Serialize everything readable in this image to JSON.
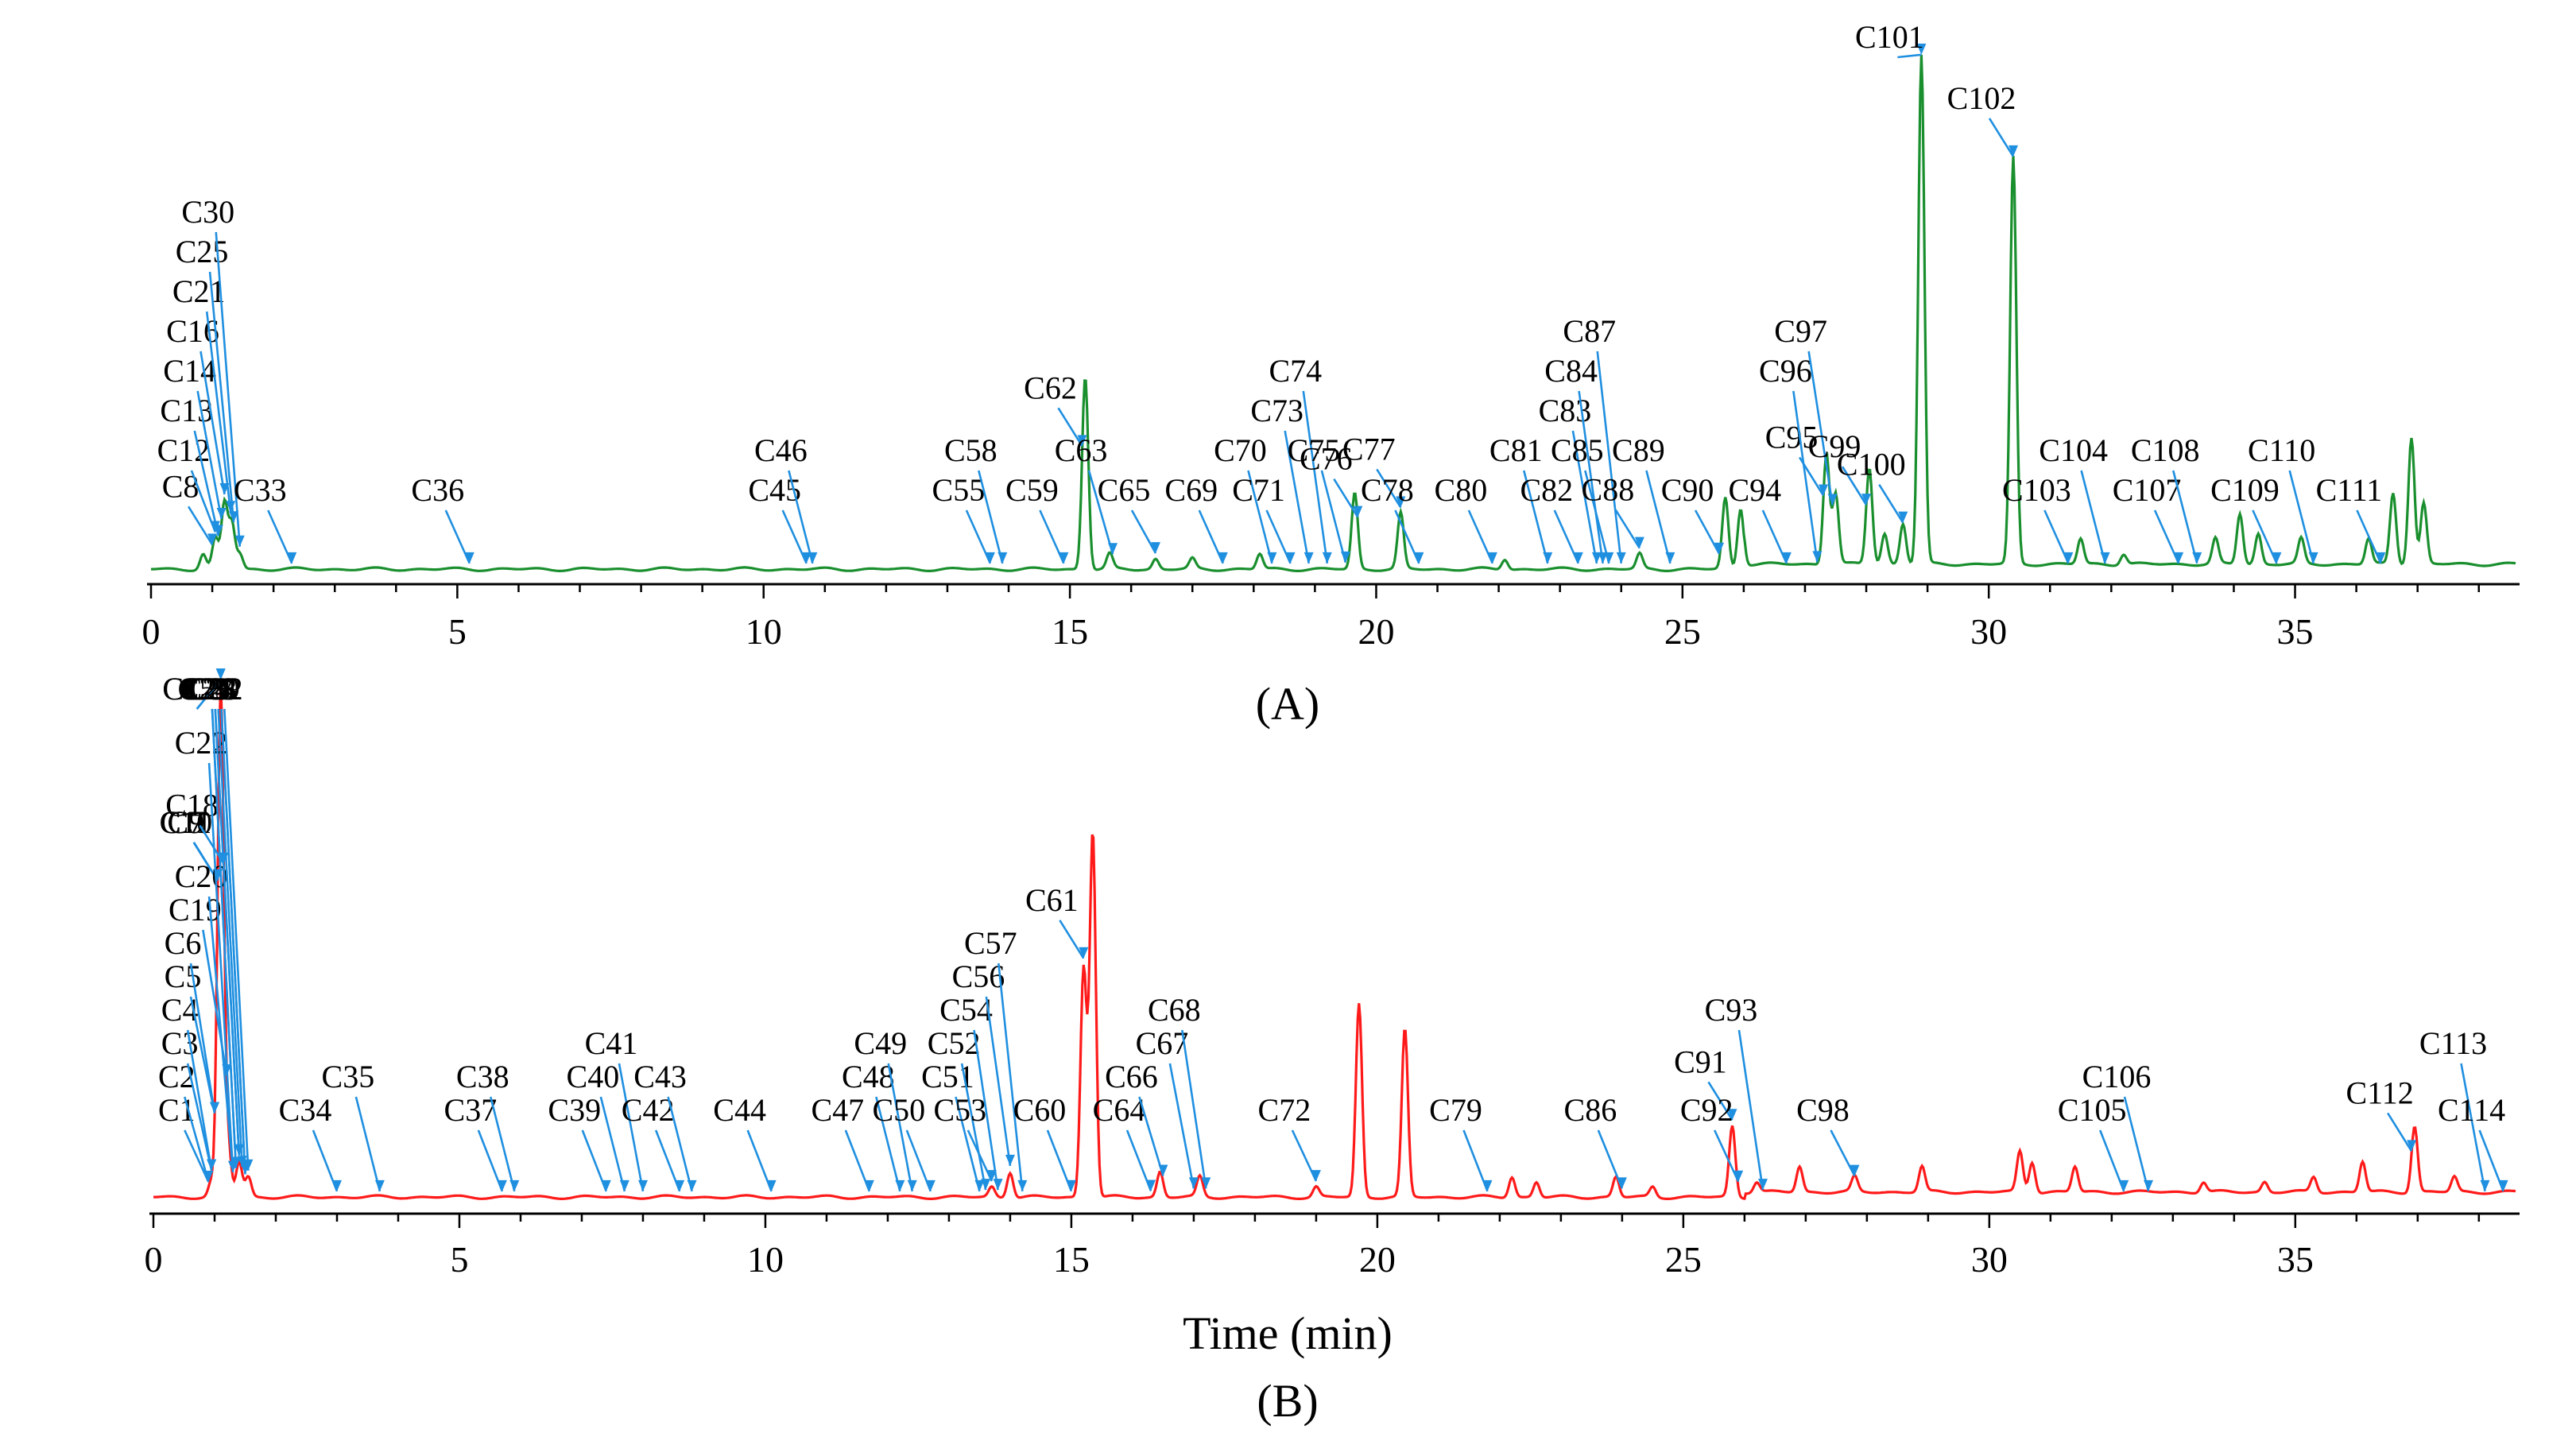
{
  "chart_data": [
    {
      "type": "line",
      "panel_label": "(A)",
      "color": "#1a8f2e",
      "xlim": [
        0,
        38.6
      ],
      "ylim": [
        0,
        100
      ],
      "xticks": [
        0,
        5,
        10,
        15,
        20,
        25,
        30,
        35
      ],
      "xlabel": "",
      "ylabel": "",
      "peaks": [
        {
          "t": 0.85,
          "h": 3
        },
        {
          "t": 1.05,
          "h": 6
        },
        {
          "t": 1.2,
          "h": 13
        },
        {
          "t": 1.32,
          "h": 9
        },
        {
          "t": 1.45,
          "h": 3
        },
        {
          "t": 15.25,
          "h": 38
        },
        {
          "t": 15.65,
          "h": 3
        },
        {
          "t": 16.4,
          "h": 2
        },
        {
          "t": 17.0,
          "h": 2
        },
        {
          "t": 18.1,
          "h": 3
        },
        {
          "t": 19.65,
          "h": 15
        },
        {
          "t": 20.4,
          "h": 11
        },
        {
          "t": 22.1,
          "h": 2
        },
        {
          "t": 24.3,
          "h": 3
        },
        {
          "t": 25.7,
          "h": 14
        },
        {
          "t": 25.95,
          "h": 12
        },
        {
          "t": 27.35,
          "h": 22
        },
        {
          "t": 27.5,
          "h": 14
        },
        {
          "t": 28.05,
          "h": 19
        },
        {
          "t": 28.3,
          "h": 6
        },
        {
          "t": 28.6,
          "h": 8
        },
        {
          "t": 28.9,
          "h": 100
        },
        {
          "t": 30.4,
          "h": 80
        },
        {
          "t": 31.5,
          "h": 5
        },
        {
          "t": 32.2,
          "h": 2
        },
        {
          "t": 33.7,
          "h": 5
        },
        {
          "t": 34.1,
          "h": 10
        },
        {
          "t": 34.4,
          "h": 6
        },
        {
          "t": 35.1,
          "h": 5
        },
        {
          "t": 36.2,
          "h": 5
        },
        {
          "t": 36.6,
          "h": 14
        },
        {
          "t": 36.9,
          "h": 25
        },
        {
          "t": 37.1,
          "h": 12
        }
      ],
      "annotations": [
        {
          "label": "C8",
          "t": 1.0
        },
        {
          "label": "C12",
          "t": 1.05
        },
        {
          "label": "C13",
          "t": 1.1
        },
        {
          "label": "C14",
          "t": 1.15
        },
        {
          "label": "C16",
          "t": 1.2
        },
        {
          "label": "C21",
          "t": 1.3
        },
        {
          "label": "C25",
          "t": 1.35
        },
        {
          "label": "C30",
          "t": 1.45
        },
        {
          "label": "C33",
          "t": 2.3
        },
        {
          "label": "C36",
          "t": 5.2
        },
        {
          "label": "C45",
          "t": 10.7
        },
        {
          "label": "C46",
          "t": 10.8
        },
        {
          "label": "C55",
          "t": 13.7
        },
        {
          "label": "C58",
          "t": 13.9
        },
        {
          "label": "C59",
          "t": 14.9
        },
        {
          "label": "C62",
          "t": 15.2
        },
        {
          "label": "C63",
          "t": 15.7
        },
        {
          "label": "C65",
          "t": 16.4
        },
        {
          "label": "C69",
          "t": 17.5
        },
        {
          "label": "C70",
          "t": 18.3
        },
        {
          "label": "C71",
          "t": 18.6
        },
        {
          "label": "C73",
          "t": 18.9
        },
        {
          "label": "C74",
          "t": 19.2
        },
        {
          "label": "C75",
          "t": 19.5
        },
        {
          "label": "C76",
          "t": 19.7
        },
        {
          "label": "C77",
          "t": 20.4
        },
        {
          "label": "C78",
          "t": 20.7
        },
        {
          "label": "C80",
          "t": 21.9
        },
        {
          "label": "C81",
          "t": 22.8
        },
        {
          "label": "C82",
          "t": 23.3
        },
        {
          "label": "C83",
          "t": 23.6
        },
        {
          "label": "C84",
          "t": 23.7
        },
        {
          "label": "C85",
          "t": 23.8
        },
        {
          "label": "C87",
          "t": 24.0
        },
        {
          "label": "C88",
          "t": 24.3
        },
        {
          "label": "C89",
          "t": 24.8
        },
        {
          "label": "C90",
          "t": 25.6
        },
        {
          "label": "C94",
          "t": 26.7
        },
        {
          "label": "C95",
          "t": 27.3
        },
        {
          "label": "C96",
          "t": 27.2
        },
        {
          "label": "C97",
          "t": 27.45
        },
        {
          "label": "C99",
          "t": 28.0
        },
        {
          "label": "C100",
          "t": 28.6
        },
        {
          "label": "C101",
          "t": 28.9
        },
        {
          "label": "C102",
          "t": 30.4
        },
        {
          "label": "C103",
          "t": 31.3
        },
        {
          "label": "C104",
          "t": 31.9
        },
        {
          "label": "C107",
          "t": 33.1
        },
        {
          "label": "C108",
          "t": 33.4
        },
        {
          "label": "C109",
          "t": 34.7
        },
        {
          "label": "C110",
          "t": 35.3
        },
        {
          "label": "C111",
          "t": 36.4
        }
      ]
    },
    {
      "type": "line",
      "panel_label": "(B)",
      "color": "#ff1a1a",
      "xlim": [
        0,
        38.6
      ],
      "ylim": [
        0,
        100
      ],
      "xticks": [
        0,
        5,
        10,
        15,
        20,
        25,
        30,
        35
      ],
      "xlabel": "Time (min)",
      "ylabel": "",
      "peaks": [
        {
          "t": 0.95,
          "h": 3
        },
        {
          "t": 1.1,
          "h": 100
        },
        {
          "t": 1.22,
          "h": 10
        },
        {
          "t": 1.4,
          "h": 7
        },
        {
          "t": 1.55,
          "h": 4
        },
        {
          "t": 13.7,
          "h": 2
        },
        {
          "t": 14.0,
          "h": 5
        },
        {
          "t": 15.2,
          "h": 45
        },
        {
          "t": 15.35,
          "h": 72
        },
        {
          "t": 16.45,
          "h": 5
        },
        {
          "t": 17.1,
          "h": 4
        },
        {
          "t": 19.0,
          "h": 2
        },
        {
          "t": 19.7,
          "h": 38
        },
        {
          "t": 20.45,
          "h": 33
        },
        {
          "t": 22.2,
          "h": 4
        },
        {
          "t": 22.6,
          "h": 3
        },
        {
          "t": 23.9,
          "h": 4
        },
        {
          "t": 24.5,
          "h": 2
        },
        {
          "t": 25.8,
          "h": 14
        },
        {
          "t": 26.2,
          "h": 2
        },
        {
          "t": 26.9,
          "h": 5
        },
        {
          "t": 27.8,
          "h": 3
        },
        {
          "t": 28.9,
          "h": 5
        },
        {
          "t": 30.5,
          "h": 8
        },
        {
          "t": 30.7,
          "h": 6
        },
        {
          "t": 31.4,
          "h": 5
        },
        {
          "t": 33.5,
          "h": 2
        },
        {
          "t": 34.5,
          "h": 2
        },
        {
          "t": 35.3,
          "h": 3
        },
        {
          "t": 36.1,
          "h": 6
        },
        {
          "t": 36.95,
          "h": 13
        },
        {
          "t": 37.6,
          "h": 3
        }
      ],
      "annotations": [
        {
          "label": "C1",
          "t": 0.9
        },
        {
          "label": "C2",
          "t": 0.9
        },
        {
          "label": "C3",
          "t": 0.95
        },
        {
          "label": "C4",
          "t": 0.95
        },
        {
          "label": "C5",
          "t": 1.0
        },
        {
          "label": "C6",
          "t": 1.0
        },
        {
          "label": "C7",
          "t": 1.05
        },
        {
          "label": "C9",
          "t": 1.05
        },
        {
          "label": "C10",
          "t": 1.05
        },
        {
          "label": "C11",
          "t": 1.05
        },
        {
          "label": "C15",
          "t": 1.1
        },
        {
          "label": "C17",
          "t": 1.1
        },
        {
          "label": "C18",
          "t": 1.15
        },
        {
          "label": "C19",
          "t": 1.2
        },
        {
          "label": "C20",
          "t": 1.3
        },
        {
          "label": "C22",
          "t": 1.3
        },
        {
          "label": "C23",
          "t": 1.35
        },
        {
          "label": "C24",
          "t": 1.35
        },
        {
          "label": "C26",
          "t": 1.4
        },
        {
          "label": "C27",
          "t": 1.4
        },
        {
          "label": "C28",
          "t": 1.45
        },
        {
          "label": "C29",
          "t": 1.5
        },
        {
          "label": "C31",
          "t": 1.5
        },
        {
          "label": "C32",
          "t": 1.55
        },
        {
          "label": "C34",
          "t": 3.0
        },
        {
          "label": "C35",
          "t": 3.7
        },
        {
          "label": "C37",
          "t": 5.7
        },
        {
          "label": "C38",
          "t": 5.9
        },
        {
          "label": "C39",
          "t": 7.4
        },
        {
          "label": "C40",
          "t": 7.7
        },
        {
          "label": "C41",
          "t": 8.0
        },
        {
          "label": "C42",
          "t": 8.6
        },
        {
          "label": "C43",
          "t": 8.8
        },
        {
          "label": "C44",
          "t": 10.1
        },
        {
          "label": "C47",
          "t": 11.7
        },
        {
          "label": "C48",
          "t": 12.2
        },
        {
          "label": "C49",
          "t": 12.4
        },
        {
          "label": "C50",
          "t": 12.7
        },
        {
          "label": "C51",
          "t": 13.5
        },
        {
          "label": "C52",
          "t": 13.6
        },
        {
          "label": "C53",
          "t": 13.7
        },
        {
          "label": "C54",
          "t": 13.8
        },
        {
          "label": "C56",
          "t": 14.0
        },
        {
          "label": "C57",
          "t": 14.2
        },
        {
          "label": "C60",
          "t": 15.0
        },
        {
          "label": "C61",
          "t": 15.2
        },
        {
          "label": "C64",
          "t": 16.3
        },
        {
          "label": "C66",
          "t": 16.5
        },
        {
          "label": "C67",
          "t": 17.0
        },
        {
          "label": "C68",
          "t": 17.2
        },
        {
          "label": "C72",
          "t": 19.0
        },
        {
          "label": "C79",
          "t": 21.8
        },
        {
          "label": "C86",
          "t": 24.0
        },
        {
          "label": "C91",
          "t": 25.8
        },
        {
          "label": "C92",
          "t": 25.9
        },
        {
          "label": "C93",
          "t": 26.3
        },
        {
          "label": "C98",
          "t": 27.8
        },
        {
          "label": "C105",
          "t": 32.2
        },
        {
          "label": "C106",
          "t": 32.6
        },
        {
          "label": "C112",
          "t": 36.9
        },
        {
          "label": "C113",
          "t": 38.1
        },
        {
          "label": "C114",
          "t": 38.4
        }
      ]
    }
  ]
}
